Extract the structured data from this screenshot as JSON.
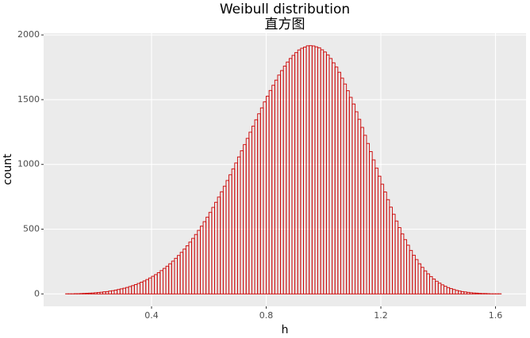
{
  "chart_data": {
    "type": "histogram",
    "title": "Weibull distribution",
    "subtitle": "直方图",
    "x_label": "h",
    "y_label": "count",
    "bins": [
      0.1,
      0.11,
      0.12,
      0.13,
      0.14,
      0.15,
      0.16,
      0.17,
      0.18,
      0.19,
      0.2,
      0.21,
      0.22,
      0.23,
      0.24,
      0.25,
      0.26,
      0.27,
      0.28,
      0.29,
      0.3,
      0.31,
      0.32,
      0.33,
      0.34,
      0.35,
      0.36,
      0.37,
      0.38,
      0.39,
      0.4,
      0.41,
      0.42,
      0.43,
      0.44,
      0.45,
      0.46,
      0.47,
      0.48,
      0.49,
      0.5,
      0.51,
      0.52,
      0.53,
      0.54,
      0.55,
      0.56,
      0.57,
      0.58,
      0.59,
      0.6,
      0.61,
      0.62,
      0.63,
      0.64,
      0.65,
      0.66,
      0.67,
      0.68,
      0.69,
      0.7,
      0.71,
      0.72,
      0.73,
      0.74,
      0.75,
      0.76,
      0.77,
      0.78,
      0.79,
      0.8,
      0.81,
      0.82,
      0.83,
      0.84,
      0.85,
      0.86,
      0.87,
      0.88,
      0.89,
      0.9,
      0.91,
      0.92,
      0.93,
      0.94,
      0.95,
      0.96,
      0.97,
      0.98,
      0.99,
      1.0,
      1.01,
      1.02,
      1.03,
      1.04,
      1.05,
      1.06,
      1.07,
      1.08,
      1.09,
      1.1,
      1.11,
      1.12,
      1.13,
      1.14,
      1.15,
      1.16,
      1.17,
      1.18,
      1.19,
      1.2,
      1.21,
      1.22,
      1.23,
      1.24,
      1.25,
      1.26,
      1.27,
      1.28,
      1.29,
      1.3,
      1.31,
      1.32,
      1.33,
      1.34,
      1.35,
      1.36,
      1.37,
      1.38,
      1.39,
      1.4,
      1.41,
      1.42,
      1.43,
      1.44,
      1.45,
      1.46,
      1.47,
      1.48,
      1.49,
      1.5,
      1.51,
      1.52,
      1.53,
      1.54,
      1.55,
      1.56,
      1.57,
      1.58,
      1.59,
      1.6,
      1.61,
      1.62,
      1.63
    ],
    "values": [
      1,
      1,
      1,
      2,
      2,
      3,
      4,
      5,
      6,
      7,
      9,
      11,
      13,
      16,
      18,
      22,
      25,
      29,
      34,
      39,
      44,
      50,
      57,
      64,
      72,
      81,
      90,
      100,
      111,
      123,
      136,
      149,
      164,
      180,
      197,
      214,
      233,
      253,
      275,
      297,
      321,
      346,
      372,
      400,
      429,
      459,
      491,
      523,
      558,
      593,
      630,
      668,
      707,
      748,
      789,
      832,
      876,
      920,
      966,
      1011,
      1058,
      1106,
      1153,
      1201,
      1249,
      1296,
      1345,
      1391,
      1437,
      1483,
      1527,
      1571,
      1611,
      1651,
      1690,
      1725,
      1759,
      1791,
      1818,
      1842,
      1864,
      1884,
      1897,
      1906,
      1916,
      1917,
      1915,
      1908,
      1901,
      1885,
      1868,
      1846,
      1818,
      1785,
      1752,
      1712,
      1666,
      1621,
      1569,
      1518,
      1467,
      1407,
      1348,
      1286,
      1225,
      1162,
      1099,
      1035,
      972,
      909,
      847,
      787,
      728,
      670,
      615,
      563,
      512,
      464,
      419,
      376,
      336,
      299,
      265,
      233,
      205,
      178,
      155,
      134,
      115,
      98,
      83,
      70,
      59,
      49,
      41,
      34,
      27,
      22,
      18,
      15,
      12,
      9,
      7,
      6,
      4,
      3,
      3,
      2,
      1,
      1,
      1,
      1,
      0
    ],
    "color": "#cc0000",
    "xlim": [
      0.0235,
      1.7065
    ],
    "xticks": [
      0.4,
      0.8,
      1.2,
      1.6
    ],
    "ylim": [
      -96,
      2013
    ],
    "yticks": [
      0,
      500,
      1000,
      1500,
      2000
    ],
    "grid": true
  }
}
